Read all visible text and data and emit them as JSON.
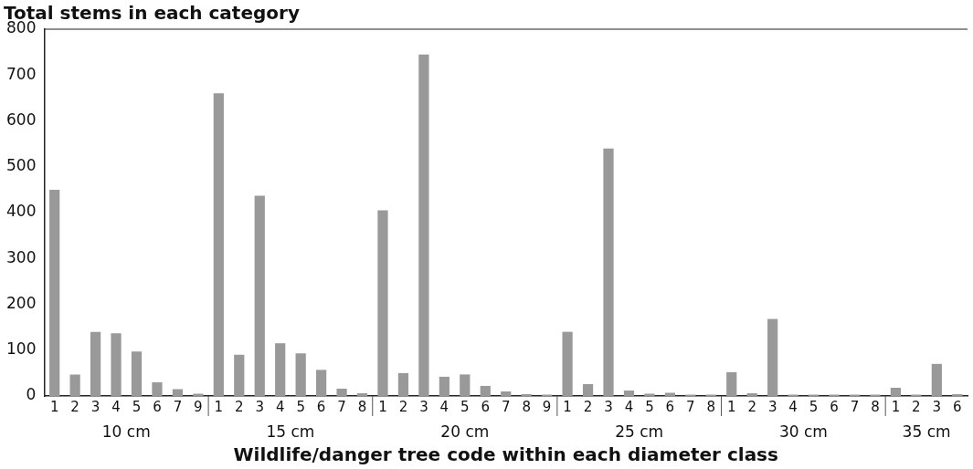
{
  "chart_data": {
    "type": "bar",
    "title": "Total stems in each category",
    "xlabel": "Wildlife/danger tree code within each diameter class",
    "categories": [
      "1",
      "2",
      "3",
      "4",
      "5",
      "6",
      "7",
      "9",
      "1",
      "2",
      "3",
      "4",
      "5",
      "6",
      "7",
      "8",
      "1",
      "2",
      "3",
      "4",
      "5",
      "6",
      "7",
      "8",
      "9",
      "1",
      "2",
      "3",
      "4",
      "5",
      "6",
      "7",
      "8",
      "1",
      "2",
      "3",
      "4",
      "5",
      "6",
      "7",
      "8",
      "1",
      "2",
      "3",
      "6"
    ],
    "values": [
      450,
      47,
      140,
      137,
      97,
      30,
      15,
      5,
      660,
      90,
      437,
      115,
      93,
      57,
      16,
      6,
      405,
      50,
      745,
      42,
      47,
      22,
      10,
      4,
      3,
      140,
      26,
      540,
      12,
      5,
      7,
      3,
      3,
      52,
      6,
      168,
      3,
      3,
      3,
      3,
      3,
      18,
      3,
      70,
      4
    ],
    "color": "#999999",
    "annotations": [
      "10 cm",
      "15 cm",
      "20 cm",
      "25 cm",
      "30 cm",
      "35 cm"
    ],
    "ylim": [
      0,
      800
    ],
    "yticks": [
      0,
      100,
      200,
      300,
      400,
      500,
      600,
      700,
      800
    ],
    "grid": false,
    "legend": false
  }
}
